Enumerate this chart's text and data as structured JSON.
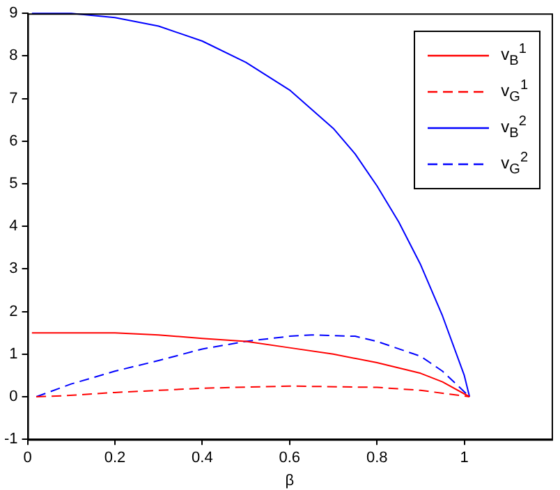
{
  "chart_data": {
    "type": "line",
    "xlabel": "β",
    "xlim": [
      0,
      1.2
    ],
    "xticks": [
      0,
      0.2,
      0.4,
      0.6,
      0.8,
      1
    ],
    "ylim": [
      -1,
      9
    ],
    "yticks": [
      -1,
      0,
      1,
      2,
      3,
      4,
      5,
      6,
      7,
      8,
      9
    ],
    "grid": false,
    "legend": "top right",
    "marker": "none",
    "series": [
      {
        "name": "v$_{B}$$^{1}$",
        "color": "#ff0000",
        "line_style": "solid",
        "x": [
          0.01,
          0.2,
          0.3,
          0.4,
          0.5,
          0.6,
          0.7,
          0.8,
          0.9,
          0.95,
          1.012
        ],
        "values": [
          1.5,
          1.5,
          1.45,
          1.37,
          1.3,
          1.15,
          1.0,
          0.8,
          0.55,
          0.35,
          0
        ]
      },
      {
        "name": "v$_{G}$$^{1}$",
        "color": "#ff0000",
        "line_style": "dashed",
        "x": [
          0.02,
          0.08,
          0.2,
          0.4,
          0.6,
          0.8,
          0.9,
          1.012
        ],
        "values": [
          0,
          0.02,
          0.1,
          0.2,
          0.25,
          0.22,
          0.15,
          0
        ]
      },
      {
        "name": "v$_{B}$$^{2}$",
        "color": "#0000ff",
        "line_style": "solid",
        "x": [
          0.01,
          0.1,
          0.2,
          0.3,
          0.4,
          0.5,
          0.6,
          0.7,
          0.75,
          0.8,
          0.85,
          0.9,
          0.95,
          1.0,
          1.012
        ],
        "values": [
          9,
          9,
          8.9,
          8.7,
          8.35,
          7.85,
          7.2,
          6.3,
          5.7,
          4.95,
          4.1,
          3.1,
          1.9,
          0.5,
          0
        ]
      },
      {
        "name": "v$_{G}$$^{2}$",
        "color": "#0000ff",
        "line_style": "dashed",
        "x": [
          0.02,
          0.1,
          0.2,
          0.3,
          0.4,
          0.5,
          0.6,
          0.65,
          0.75,
          0.8,
          0.9,
          0.95,
          1.012
        ],
        "values": [
          0,
          0.3,
          0.6,
          0.85,
          1.12,
          1.3,
          1.42,
          1.45,
          1.42,
          1.3,
          0.95,
          0.6,
          0
        ]
      }
    ]
  }
}
